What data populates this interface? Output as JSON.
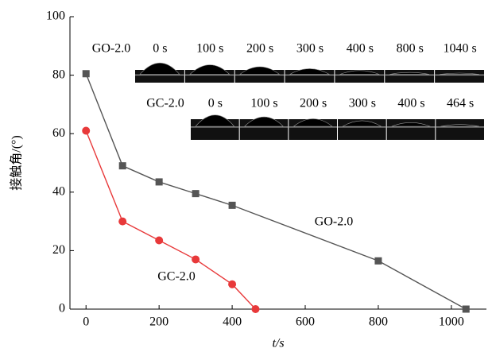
{
  "chart_data": {
    "type": "line",
    "xlabel": "t/s",
    "ylabel": "接触角/(°)",
    "xlim": [
      -44,
      1096
    ],
    "ylim": [
      0,
      100
    ],
    "xticks": [
      0,
      200,
      400,
      600,
      800,
      1000
    ],
    "yticks": [
      0,
      20,
      40,
      60,
      80,
      100
    ],
    "series": [
      {
        "name": "GO-2.0",
        "color": "#555555",
        "marker": "square",
        "x": [
          0,
          100,
          200,
          300,
          400,
          800,
          1040
        ],
        "values": [
          80.5,
          49,
          43.5,
          39.5,
          35.5,
          16.5,
          0
        ]
      },
      {
        "name": "GC-2.0",
        "color": "#e8393a",
        "marker": "circle",
        "x": [
          0,
          100,
          200,
          300,
          400,
          464
        ],
        "values": [
          61,
          30,
          23.5,
          17,
          8.5,
          0
        ]
      }
    ],
    "insets": [
      {
        "label": "GO-2.0",
        "times": [
          "0 s",
          "100 s",
          "200 s",
          "300 s",
          "400 s",
          "800 s",
          "1040 s"
        ]
      },
      {
        "label": "GC-2.0",
        "times": [
          "0 s",
          "100 s",
          "200 s",
          "300 s",
          "400 s",
          "464 s"
        ]
      }
    ]
  }
}
